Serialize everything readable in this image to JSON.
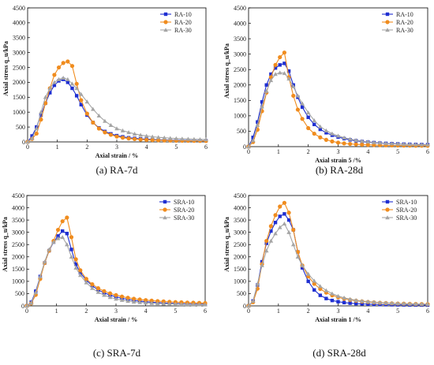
{
  "styles": {
    "colors": [
      "#1f2fd1",
      "#f08c1e",
      "#a5a5a5"
    ],
    "markers": [
      "square",
      "circle",
      "triangle"
    ]
  },
  "chart_data": [
    {
      "type": "line",
      "caption": "(a)   RA-7d",
      "xlabel": "Axial strain / %",
      "ylabel": "Axial stress q_u/kPa",
      "xlim": [
        0,
        6
      ],
      "ylim": [
        0,
        4500
      ],
      "xticks": [
        0,
        1,
        2,
        3,
        4,
        5,
        6
      ],
      "yticks": [
        0,
        500,
        1000,
        1500,
        2000,
        2500,
        3000,
        3500,
        4000,
        4500
      ],
      "legend_position": "top-right",
      "series": [
        {
          "name": "RA-10",
          "x": [
            0,
            0.15,
            0.3,
            0.45,
            0.6,
            0.75,
            0.9,
            1.05,
            1.2,
            1.35,
            1.5,
            1.65,
            1.8,
            2.0,
            2.2,
            2.4,
            2.6,
            2.8,
            3.0,
            3.2,
            3.4,
            3.6,
            3.8,
            4.0,
            4.2,
            4.4,
            4.6,
            4.8,
            5.0,
            5.2,
            5.4,
            5.6,
            5.8,
            6.0
          ],
          "y": [
            0,
            200,
            500,
            900,
            1300,
            1650,
            1900,
            2050,
            2100,
            2000,
            1800,
            1550,
            1250,
            900,
            650,
            470,
            350,
            270,
            210,
            170,
            140,
            120,
            100,
            90,
            80,
            70,
            65,
            60,
            55,
            50,
            48,
            45,
            42,
            40
          ]
        },
        {
          "name": "RA-20",
          "x": [
            0,
            0.15,
            0.3,
            0.45,
            0.6,
            0.75,
            0.9,
            1.05,
            1.2,
            1.35,
            1.5,
            1.65,
            1.8,
            2.0,
            2.2,
            2.4,
            2.6,
            2.8,
            3.0,
            3.2,
            3.4,
            3.6,
            3.8,
            4.0,
            4.2,
            4.4,
            4.6,
            4.8,
            5.0,
            5.2,
            5.4,
            5.6,
            5.8,
            6.0
          ],
          "y": [
            0,
            100,
            280,
            750,
            1300,
            1800,
            2250,
            2500,
            2650,
            2700,
            2550,
            1950,
            1400,
            950,
            650,
            450,
            320,
            240,
            180,
            140,
            115,
            95,
            80,
            70,
            62,
            55,
            50,
            46,
            43,
            40,
            38,
            36,
            34,
            32
          ]
        },
        {
          "name": "RA-30",
          "x": [
            0,
            0.15,
            0.3,
            0.45,
            0.6,
            0.75,
            0.9,
            1.05,
            1.2,
            1.35,
            1.5,
            1.65,
            1.8,
            2.0,
            2.2,
            2.4,
            2.6,
            2.8,
            3.0,
            3.2,
            3.4,
            3.6,
            3.8,
            4.0,
            4.2,
            4.4,
            4.6,
            4.8,
            5.0,
            5.2,
            5.4,
            5.6,
            5.8,
            6.0
          ],
          "y": [
            0,
            120,
            450,
            1000,
            1500,
            1800,
            2000,
            2100,
            2150,
            2100,
            1950,
            1800,
            1600,
            1350,
            1100,
            880,
            700,
            560,
            450,
            380,
            320,
            270,
            230,
            200,
            175,
            155,
            140,
            125,
            115,
            105,
            98,
            90,
            85,
            80
          ]
        }
      ]
    },
    {
      "type": "line",
      "caption": "(b)   RA-28d",
      "xlabel": "Axial strain 5 /%",
      "ylabel": "Axial stress q_u/kPa",
      "xlim": [
        0,
        6
      ],
      "ylim": [
        0,
        4500
      ],
      "xticks": [
        0,
        1,
        2,
        3,
        4,
        5,
        6
      ],
      "yticks": [
        0,
        500,
        1000,
        1500,
        2000,
        2500,
        3000,
        3500,
        4000,
        4500
      ],
      "legend_position": "top-right",
      "series": [
        {
          "name": "RA-10",
          "x": [
            0,
            0.15,
            0.3,
            0.45,
            0.6,
            0.75,
            0.9,
            1.05,
            1.2,
            1.35,
            1.5,
            1.65,
            1.8,
            2.0,
            2.2,
            2.4,
            2.6,
            2.8,
            3.0,
            3.2,
            3.4,
            3.6,
            3.8,
            4.0,
            4.2,
            4.4,
            4.6,
            4.8,
            5.0,
            5.2,
            5.4,
            5.6,
            5.8,
            6.0
          ],
          "y": [
            0,
            300,
            800,
            1450,
            2000,
            2350,
            2550,
            2650,
            2700,
            2450,
            2000,
            1600,
            1280,
            950,
            720,
            560,
            450,
            370,
            310,
            260,
            220,
            190,
            165,
            145,
            130,
            115,
            105,
            95,
            88,
            80,
            75,
            70,
            66,
            62
          ]
        },
        {
          "name": "RA-20",
          "x": [
            0,
            0.15,
            0.3,
            0.45,
            0.6,
            0.75,
            0.9,
            1.05,
            1.2,
            1.35,
            1.5,
            1.65,
            1.8,
            2.0,
            2.2,
            2.4,
            2.6,
            2.8,
            3.0,
            3.2,
            3.4,
            3.6,
            3.8,
            4.0,
            4.2,
            4.4,
            4.6,
            4.8,
            5.0,
            5.2,
            5.4,
            5.6,
            5.8,
            6.0
          ],
          "y": [
            0,
            150,
            550,
            1150,
            1750,
            2250,
            2650,
            2900,
            3050,
            2250,
            1650,
            1200,
            900,
            600,
            420,
            300,
            220,
            170,
            130,
            105,
            88,
            75,
            65,
            58,
            52,
            47,
            43,
            40,
            37,
            35,
            33,
            31,
            30,
            28
          ]
        },
        {
          "name": "RA-30",
          "x": [
            0,
            0.15,
            0.3,
            0.45,
            0.6,
            0.75,
            0.9,
            1.05,
            1.2,
            1.35,
            1.5,
            1.65,
            1.8,
            2.0,
            2.2,
            2.4,
            2.6,
            2.8,
            3.0,
            3.2,
            3.4,
            3.6,
            3.8,
            4.0,
            4.2,
            4.4,
            4.6,
            4.8,
            5.0,
            5.2,
            5.4,
            5.6,
            5.8,
            6.0
          ],
          "y": [
            0,
            200,
            700,
            1300,
            1800,
            2150,
            2350,
            2400,
            2380,
            2200,
            1950,
            1650,
            1400,
            1100,
            850,
            650,
            520,
            420,
            350,
            290,
            245,
            210,
            180,
            158,
            140,
            125,
            112,
            102,
            93,
            86,
            80,
            75,
            70,
            66
          ]
        }
      ]
    },
    {
      "type": "line",
      "caption": "(c)   SRA-7d",
      "xlabel": "Axial strain / %",
      "ylabel": "Axial stress q_u/kPa",
      "xlim": [
        0,
        6
      ],
      "ylim": [
        0,
        4500
      ],
      "xticks": [
        0,
        1,
        2,
        3,
        4,
        5,
        6
      ],
      "yticks": [
        0,
        500,
        1000,
        1500,
        2000,
        2500,
        3000,
        3500,
        4000,
        4500
      ],
      "legend_position": "top-right",
      "series": [
        {
          "name": "SRA-10",
          "x": [
            0,
            0.15,
            0.3,
            0.45,
            0.6,
            0.75,
            0.9,
            1.05,
            1.2,
            1.35,
            1.5,
            1.65,
            1.8,
            2.0,
            2.2,
            2.4,
            2.6,
            2.8,
            3.0,
            3.2,
            3.4,
            3.6,
            3.8,
            4.0,
            4.2,
            4.4,
            4.6,
            4.8,
            5.0,
            5.2,
            5.4,
            5.6,
            5.8,
            6.0
          ],
          "y": [
            0,
            150,
            600,
            1200,
            1750,
            2250,
            2600,
            2850,
            3050,
            2950,
            2300,
            1700,
            1350,
            1050,
            820,
            650,
            530,
            440,
            370,
            310,
            265,
            225,
            195,
            170,
            150,
            135,
            120,
            110,
            100,
            92,
            85,
            80,
            75,
            70
          ]
        },
        {
          "name": "SRA-20",
          "x": [
            0,
            0.15,
            0.3,
            0.45,
            0.6,
            0.75,
            0.9,
            1.05,
            1.2,
            1.35,
            1.5,
            1.65,
            1.8,
            2.0,
            2.2,
            2.4,
            2.6,
            2.8,
            3.0,
            3.2,
            3.4,
            3.6,
            3.8,
            4.0,
            4.2,
            4.4,
            4.6,
            4.8,
            5.0,
            5.2,
            5.4,
            5.6,
            5.8,
            6.0
          ],
          "y": [
            0,
            100,
            450,
            1100,
            1750,
            2250,
            2650,
            3100,
            3450,
            3600,
            2800,
            1900,
            1450,
            1100,
            880,
            720,
            600,
            510,
            440,
            380,
            330,
            290,
            260,
            235,
            215,
            195,
            180,
            165,
            155,
            145,
            135,
            128,
            120,
            112
          ]
        },
        {
          "name": "SRA-30",
          "x": [
            0,
            0.15,
            0.3,
            0.45,
            0.6,
            0.75,
            0.9,
            1.05,
            1.2,
            1.35,
            1.5,
            1.65,
            1.8,
            2.0,
            2.2,
            2.4,
            2.6,
            2.8,
            3.0,
            3.2,
            3.4,
            3.6,
            3.8,
            4.0,
            4.2,
            4.4,
            4.6,
            4.8,
            5.0,
            5.2,
            5.4,
            5.6,
            5.8,
            6.0
          ],
          "y": [
            0,
            120,
            550,
            1200,
            1800,
            2300,
            2600,
            2750,
            2800,
            2500,
            2000,
            1550,
            1250,
            950,
            720,
            560,
            440,
            350,
            285,
            235,
            195,
            165,
            142,
            125,
            110,
            98,
            88,
            80,
            73,
            67,
            62,
            58,
            54,
            50
          ]
        }
      ]
    },
    {
      "type": "line",
      "caption": "(d)   SRA-28d",
      "xlabel": "Axial strain 1 /%",
      "ylabel": "Axial stress q_u/kPa",
      "xlim": [
        0,
        6
      ],
      "ylim": [
        0,
        4500
      ],
      "xticks": [
        0,
        1,
        2,
        3,
        4,
        5,
        6
      ],
      "yticks": [
        0,
        500,
        1000,
        1500,
        2000,
        2500,
        3000,
        3500,
        4000,
        4500
      ],
      "legend_position": "top-right",
      "series": [
        {
          "name": "SRA-10",
          "x": [
            0,
            0.15,
            0.3,
            0.45,
            0.6,
            0.75,
            0.9,
            1.05,
            1.2,
            1.35,
            1.5,
            1.65,
            1.8,
            2.0,
            2.2,
            2.4,
            2.6,
            2.8,
            3.0,
            3.2,
            3.4,
            3.6,
            3.8,
            4.0,
            4.2,
            4.4,
            4.6,
            4.8,
            5.0,
            5.2,
            5.4,
            5.6,
            5.8,
            6.0
          ],
          "y": [
            0,
            200,
            850,
            1800,
            2550,
            3050,
            3400,
            3650,
            3750,
            3500,
            3100,
            2200,
            1550,
            1000,
            650,
            430,
            300,
            220,
            170,
            135,
            110,
            92,
            80,
            70,
            62,
            56,
            51,
            47,
            44,
            41,
            38,
            36,
            34,
            32
          ]
        },
        {
          "name": "SRA-20",
          "x": [
            0,
            0.15,
            0.3,
            0.45,
            0.6,
            0.75,
            0.9,
            1.05,
            1.2,
            1.35,
            1.5,
            1.65,
            1.8,
            2.0,
            2.2,
            2.4,
            2.6,
            2.8,
            3.0,
            3.2,
            3.4,
            3.6,
            3.8,
            4.0,
            4.2,
            4.4,
            4.6,
            4.8,
            5.0,
            5.2,
            5.4,
            5.6,
            5.8,
            6.0
          ],
          "y": [
            0,
            150,
            700,
            1700,
            2650,
            3250,
            3700,
            4050,
            4200,
            3800,
            3100,
            2200,
            1650,
            1200,
            900,
            690,
            540,
            430,
            350,
            290,
            245,
            210,
            180,
            158,
            140,
            125,
            113,
            103,
            95,
            88,
            82,
            77,
            72,
            68
          ]
        },
        {
          "name": "SRA-30",
          "x": [
            0,
            0.15,
            0.3,
            0.45,
            0.6,
            0.75,
            0.9,
            1.05,
            1.2,
            1.35,
            1.5,
            1.65,
            1.8,
            2.0,
            2.2,
            2.4,
            2.6,
            2.8,
            3.0,
            3.2,
            3.4,
            3.6,
            3.8,
            4.0,
            4.2,
            4.4,
            4.6,
            4.8,
            5.0,
            5.2,
            5.4,
            5.6,
            5.8,
            6.0
          ],
          "y": [
            0,
            200,
            900,
            1650,
            2250,
            2650,
            2950,
            3200,
            3350,
            3000,
            2500,
            2000,
            1650,
            1300,
            1020,
            800,
            630,
            500,
            400,
            330,
            275,
            232,
            200,
            175,
            155,
            138,
            124,
            112,
            102,
            94,
            87,
            81,
            76,
            71
          ]
        }
      ]
    }
  ]
}
